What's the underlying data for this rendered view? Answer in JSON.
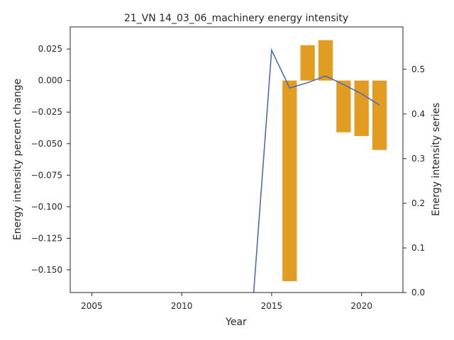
{
  "chart_data": {
    "type": "bar",
    "title": "21_VN 14_03_06_machinery energy intensity",
    "xlabel": "Year",
    "ylabel": "Energy intensity percent change",
    "y2label": "Energy intensity series",
    "xlim": [
      2003.8,
      2022.3
    ],
    "ylim": [
      -0.168,
      0.0425
    ],
    "y2lim": [
      0.0,
      0.595
    ],
    "x_ticks": [
      2005,
      2010,
      2015,
      2020
    ],
    "y_ticks": [
      0.025,
      0.0,
      -0.025,
      -0.05,
      -0.075,
      -0.1,
      -0.125,
      -0.15
    ],
    "y_tick_labels": [
      "0.025",
      "0.000",
      "−0.025",
      "−0.050",
      "−0.075",
      "−0.100",
      "−0.125",
      "−0.150"
    ],
    "y2_ticks": [
      0.0,
      0.1,
      0.2,
      0.3,
      0.4,
      0.5
    ],
    "y2_tick_labels": [
      "0.0",
      "0.1",
      "0.2",
      "0.3",
      "0.4",
      "0.5"
    ],
    "grid": false,
    "bar_series": {
      "axis": "left",
      "color": "#e39c22",
      "x": [
        2016,
        2017,
        2018,
        2019,
        2020,
        2021
      ],
      "values": [
        -0.159,
        0.028,
        0.032,
        -0.041,
        -0.044,
        -0.055
      ]
    },
    "line_series": {
      "axis": "right",
      "color": "#4a6fb0",
      "x": [
        2014,
        2015,
        2016,
        2017,
        2018,
        2019,
        2020,
        2021
      ],
      "values": [
        0.0,
        0.543,
        0.458,
        0.47,
        0.485,
        0.466,
        0.445,
        0.42
      ]
    }
  }
}
